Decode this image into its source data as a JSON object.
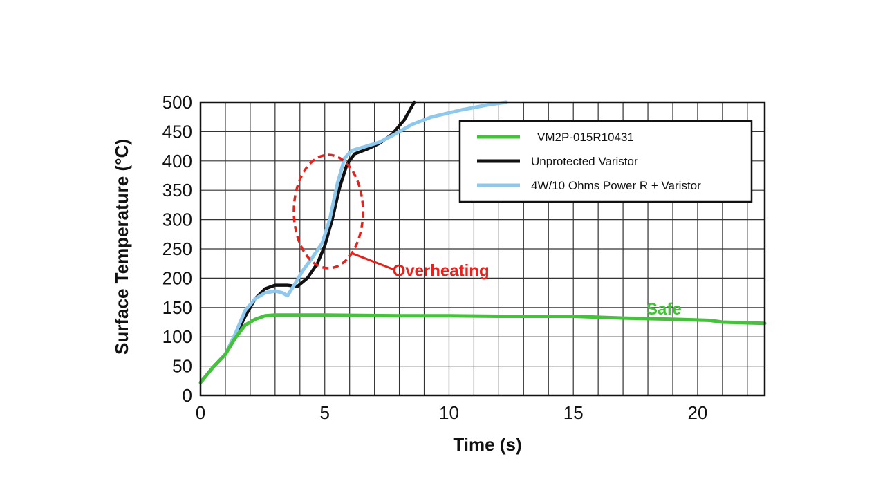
{
  "chart_data": {
    "type": "line",
    "xlabel": "Time (s)",
    "ylabel": "Surface Temperature (°C)",
    "xlim": [
      0,
      22.7
    ],
    "ylim": [
      0,
      500
    ],
    "xticks": [
      0,
      5,
      10,
      15,
      20
    ],
    "yticks": [
      0,
      50,
      100,
      150,
      200,
      250,
      300,
      350,
      400,
      450,
      500
    ],
    "grid": true,
    "legend_position": "top-right",
    "series": [
      {
        "name": "VM2P-015R10431",
        "color": "#44c23a",
        "x": [
          0,
          0.5,
          1.0,
          1.4,
          1.8,
          2.2,
          2.6,
          3.0,
          5,
          8,
          10,
          12,
          15,
          17,
          19,
          20.5,
          21,
          22.7
        ],
        "y": [
          22,
          48,
          70,
          98,
          120,
          130,
          136,
          137,
          137,
          136,
          136,
          135,
          135,
          132,
          130,
          128,
          125,
          123
        ]
      },
      {
        "name": "Unprotected Varistor",
        "color": "#111111",
        "x": [
          0,
          0.5,
          1.0,
          1.4,
          1.8,
          2.2,
          2.6,
          3.0,
          3.5,
          3.9,
          4.3,
          4.7,
          5.0,
          5.3,
          5.6,
          5.9,
          6.2,
          6.7,
          7.2,
          7.7,
          8.2,
          8.6
        ],
        "y": [
          22,
          48,
          70,
          100,
          135,
          165,
          182,
          188,
          188,
          186,
          200,
          225,
          255,
          300,
          355,
          395,
          412,
          420,
          430,
          445,
          470,
          500
        ]
      },
      {
        "name": "4W/10 Ohms Power R + Varistor",
        "color": "#8ec8ec",
        "x": [
          0,
          0.5,
          1.0,
          1.4,
          1.8,
          2.2,
          2.6,
          3.0,
          3.3,
          3.5,
          3.8,
          4.1,
          4.5,
          4.9,
          5.2,
          5.5,
          5.8,
          6.1,
          6.6,
          7.2,
          7.8,
          8.5,
          9.3,
          10.5,
          11.5,
          12.3
        ],
        "y": [
          22,
          48,
          70,
          105,
          145,
          165,
          175,
          178,
          175,
          170,
          190,
          212,
          235,
          260,
          300,
          360,
          405,
          418,
          424,
          432,
          445,
          462,
          475,
          487,
          495,
          500
        ]
      }
    ],
    "annotations": [
      {
        "text": "Overheating",
        "color": "#e8211c",
        "x": 8.0,
        "y": 213
      },
      {
        "text": "Safe",
        "color": "#44c23a",
        "x": 18.5,
        "y": 150
      }
    ]
  }
}
